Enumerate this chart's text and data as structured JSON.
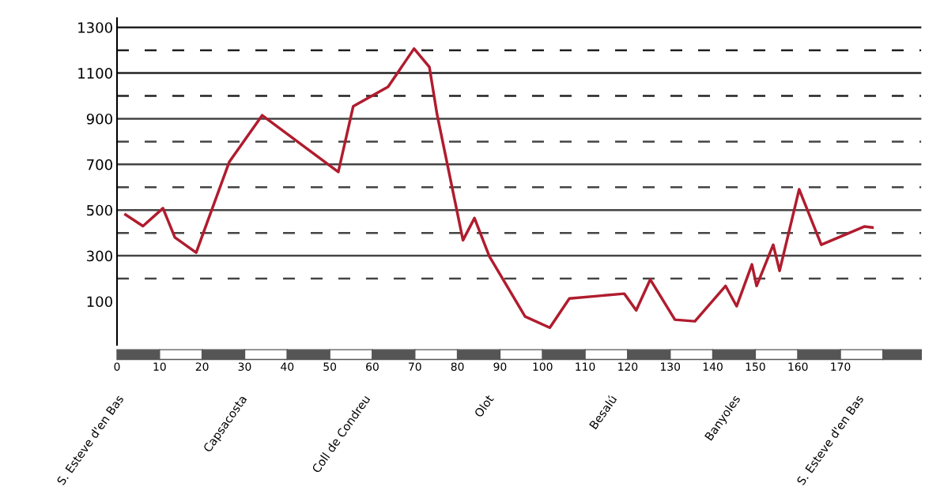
{
  "chart_data": {
    "type": "line",
    "x": [
      2,
      6.1,
      10.8,
      13.6,
      18.6,
      26.4,
      34.1,
      52,
      55.5,
      63.7,
      69.8,
      73.4,
      75.2,
      81.3,
      84,
      87.5,
      95.9,
      101.7,
      106.3,
      119.2,
      122,
      125.3,
      131.1,
      135.8,
      143,
      145.6,
      149.2,
      150.3,
      154.2,
      155.7,
      160.3,
      165.5,
      175.6,
      177.5
    ],
    "series": [
      {
        "color": "#b01c2e",
        "values": [
          480,
          430,
          508,
          380,
          314,
          712,
          915,
          667,
          954,
          1040,
          1207,
          1127,
          920,
          368,
          465,
          297,
          34,
          -15,
          113,
          134,
          61,
          196,
          20,
          13,
          168,
          79,
          262,
          168,
          348,
          234,
          591,
          348,
          428,
          424
        ]
      }
    ],
    "xlim": [
      0,
      189
    ],
    "xticks": [
      0,
      10,
      20,
      30,
      40,
      50,
      60,
      70,
      80,
      90,
      100,
      110,
      120,
      130,
      140,
      150,
      160,
      170
    ],
    "ylim": [
      -90,
      1340
    ],
    "yticks": [
      100,
      300,
      500,
      700,
      900,
      1100,
      1300
    ],
    "grid": false,
    "legend": false,
    "marker": "none",
    "line_style": "solid",
    "ref_lines": [
      {
        "axis": "y",
        "value": 1300,
        "line_style": "solid",
        "color": "#222222"
      },
      {
        "axis": "y",
        "value": 1200,
        "line_style": "dashed",
        "color": "#222222"
      },
      {
        "axis": "y",
        "value": 1100,
        "line_style": "solid",
        "color": "#222222"
      },
      {
        "axis": "y",
        "value": 1000,
        "line_style": "dashed",
        "color": "#222222"
      },
      {
        "axis": "y",
        "value": 900,
        "line_style": "solid",
        "color": "#444444"
      },
      {
        "axis": "y",
        "value": 800,
        "line_style": "dashed",
        "color": "#444444"
      },
      {
        "axis": "y",
        "value": 700,
        "line_style": "solid",
        "color": "#444444"
      },
      {
        "axis": "y",
        "value": 600,
        "line_style": "dashed",
        "color": "#444444"
      },
      {
        "axis": "y",
        "value": 500,
        "line_style": "solid",
        "color": "#444444"
      },
      {
        "axis": "y",
        "value": 400,
        "line_style": "dashed",
        "color": "#444444"
      },
      {
        "axis": "y",
        "value": 300,
        "line_style": "solid",
        "color": "#444444"
      },
      {
        "axis": "y",
        "value": 200,
        "line_style": "dashed",
        "color": "#444444"
      }
    ],
    "annotations": [
      "S. Esteve d'en Bas",
      "Capsacosta",
      "Coll de Condreu",
      "Olot",
      "Besalú",
      "Banyoles",
      "S. Esteve d'en Bas"
    ]
  }
}
